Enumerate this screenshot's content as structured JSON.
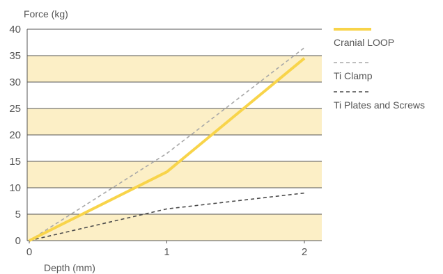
{
  "chart_data": {
    "type": "line",
    "title": "",
    "xlabel": "Depth (mm)",
    "ylabel": "Force (kg)",
    "xlim": [
      0,
      2.1
    ],
    "ylim": [
      0,
      40
    ],
    "x_ticks": [
      0,
      1,
      2
    ],
    "y_ticks": [
      0,
      5,
      10,
      15,
      20,
      25,
      30,
      35,
      40
    ],
    "grid": false,
    "band_color": "#fcefc6",
    "legend_position": "right",
    "series": [
      {
        "name": "Cranial LOOP",
        "color": "#f8d44a",
        "style": "solid",
        "x": [
          0,
          1,
          2
        ],
        "y": [
          0,
          13,
          34.5
        ]
      },
      {
        "name": "Ti Clamp",
        "color": "#a8a8a8",
        "style": "dashed",
        "x": [
          0,
          1,
          2
        ],
        "y": [
          0,
          16.5,
          36.5
        ]
      },
      {
        "name": "Ti Plates and Screws",
        "color": "#4a4a4a",
        "style": "dashed",
        "x": [
          0,
          1,
          2
        ],
        "y": [
          0,
          6,
          9
        ]
      }
    ]
  }
}
